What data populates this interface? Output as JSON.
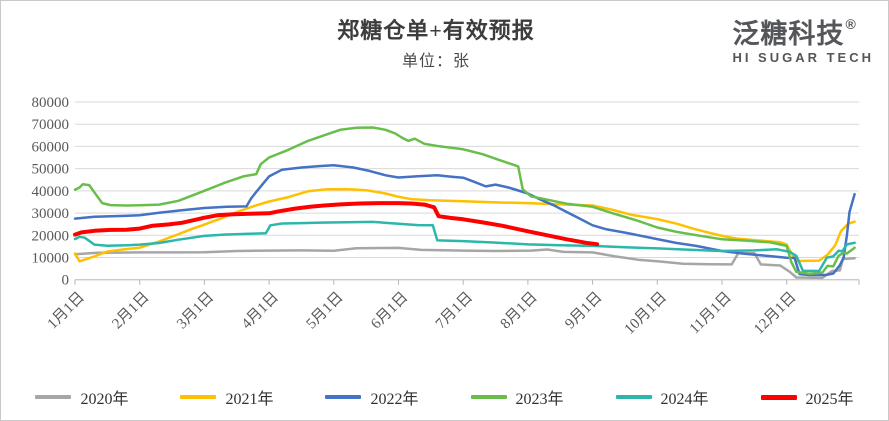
{
  "logo": {
    "name_cn": "泛糖科技",
    "registered_mark": "®",
    "name_en": "HI SUGAR TECH"
  },
  "chart_data": {
    "type": "line",
    "title": "郑糖仓单+有效预报",
    "unit_label": "单位：张",
    "xlabel": "",
    "ylabel": "",
    "ylim": [
      0,
      80000
    ],
    "grid": true,
    "legend_position": "bottom",
    "y_tick_labels": [
      0,
      10000,
      20000,
      30000,
      40000,
      50000,
      60000,
      70000,
      80000
    ],
    "x_tick_labels": [
      "1月1日",
      "2月1日",
      "3月1日",
      "4月1日",
      "5月1日",
      "6月1日",
      "7月1日",
      "8月1日",
      "9月1日",
      "10月1日",
      "11月1日",
      "12月1日"
    ],
    "x_unit": "month_of_year (1.0 = Jan 1, 13.0 = Dec 31)",
    "series": [
      {
        "name": "2020年",
        "color": "#a6a6a6",
        "line_width": 2.5,
        "points": [
          [
            1.0,
            11500
          ],
          [
            1.35,
            12100
          ],
          [
            1.7,
            12200
          ],
          [
            2.0,
            12300
          ],
          [
            2.6,
            12300
          ],
          [
            3.0,
            12400
          ],
          [
            3.5,
            12900
          ],
          [
            4.0,
            13100
          ],
          [
            4.5,
            13200
          ],
          [
            5.0,
            13000
          ],
          [
            5.35,
            14200
          ],
          [
            6.0,
            14300
          ],
          [
            6.35,
            13400
          ],
          [
            7.0,
            13100
          ],
          [
            7.5,
            12900
          ],
          [
            8.05,
            13100
          ],
          [
            8.3,
            13600
          ],
          [
            8.55,
            12500
          ],
          [
            9.0,
            12300
          ],
          [
            9.35,
            10500
          ],
          [
            9.7,
            9000
          ],
          [
            10.0,
            8300
          ],
          [
            10.4,
            7200
          ],
          [
            10.8,
            7000
          ],
          [
            11.15,
            6900
          ],
          [
            11.25,
            11900
          ],
          [
            11.5,
            11900
          ],
          [
            11.6,
            6900
          ],
          [
            11.9,
            6400
          ],
          [
            12.05,
            3500
          ],
          [
            12.15,
            1000
          ],
          [
            12.55,
            800
          ],
          [
            12.7,
            3900
          ],
          [
            12.82,
            4200
          ],
          [
            12.87,
            9300
          ],
          [
            13.05,
            9700
          ]
        ]
      },
      {
        "name": "2021年",
        "color": "#ffc000",
        "line_width": 2.5,
        "points": [
          [
            1.0,
            11800
          ],
          [
            1.07,
            8300
          ],
          [
            1.3,
            10500
          ],
          [
            1.5,
            12700
          ],
          [
            1.8,
            13800
          ],
          [
            2.0,
            14400
          ],
          [
            2.3,
            17200
          ],
          [
            2.6,
            20500
          ],
          [
            2.8,
            22800
          ],
          [
            3.0,
            24800
          ],
          [
            3.25,
            27500
          ],
          [
            3.5,
            30500
          ],
          [
            3.75,
            33000
          ],
          [
            4.0,
            35200
          ],
          [
            4.3,
            37200
          ],
          [
            4.6,
            39800
          ],
          [
            4.9,
            40700
          ],
          [
            5.2,
            40800
          ],
          [
            5.5,
            40300
          ],
          [
            5.8,
            38800
          ],
          [
            6.0,
            37300
          ],
          [
            6.2,
            36300
          ],
          [
            6.5,
            35800
          ],
          [
            7.0,
            35300
          ],
          [
            7.5,
            34800
          ],
          [
            8.0,
            34500
          ],
          [
            8.5,
            33900
          ],
          [
            9.0,
            33400
          ],
          [
            9.3,
            31500
          ],
          [
            9.6,
            29200
          ],
          [
            10.0,
            27300
          ],
          [
            10.3,
            25200
          ],
          [
            10.55,
            23000
          ],
          [
            10.75,
            21500
          ],
          [
            11.0,
            19700
          ],
          [
            11.25,
            18400
          ],
          [
            11.6,
            17600
          ],
          [
            11.9,
            16900
          ],
          [
            12.0,
            15800
          ],
          [
            12.08,
            11500
          ],
          [
            12.17,
            8400
          ],
          [
            12.5,
            8600
          ],
          [
            12.63,
            11200
          ],
          [
            12.75,
            15500
          ],
          [
            12.84,
            21900
          ],
          [
            12.95,
            25200
          ],
          [
            13.05,
            26100
          ]
        ]
      },
      {
        "name": "2022年",
        "color": "#4472c4",
        "line_width": 2.5,
        "points": [
          [
            1.0,
            27500
          ],
          [
            1.3,
            28300
          ],
          [
            1.7,
            28700
          ],
          [
            2.0,
            29000
          ],
          [
            2.3,
            30100
          ],
          [
            2.65,
            31300
          ],
          [
            3.0,
            32300
          ],
          [
            3.35,
            32800
          ],
          [
            3.65,
            33000
          ],
          [
            3.72,
            36500
          ],
          [
            3.8,
            39500
          ],
          [
            3.9,
            43000
          ],
          [
            4.0,
            46500
          ],
          [
            4.2,
            49500
          ],
          [
            4.5,
            50500
          ],
          [
            4.8,
            51200
          ],
          [
            5.0,
            51500
          ],
          [
            5.3,
            50500
          ],
          [
            5.55,
            49000
          ],
          [
            5.8,
            47000
          ],
          [
            6.0,
            46000
          ],
          [
            6.3,
            46600
          ],
          [
            6.6,
            47000
          ],
          [
            6.8,
            46400
          ],
          [
            7.0,
            45900
          ],
          [
            7.15,
            44300
          ],
          [
            7.35,
            42000
          ],
          [
            7.5,
            42800
          ],
          [
            7.7,
            41500
          ],
          [
            8.0,
            38800
          ],
          [
            8.2,
            36000
          ],
          [
            8.4,
            33500
          ],
          [
            8.6,
            30500
          ],
          [
            8.8,
            27500
          ],
          [
            9.0,
            24500
          ],
          [
            9.2,
            22800
          ],
          [
            9.5,
            21200
          ],
          [
            10.0,
            18300
          ],
          [
            10.3,
            16500
          ],
          [
            10.6,
            15200
          ],
          [
            11.0,
            12900
          ],
          [
            11.35,
            11700
          ],
          [
            11.7,
            10700
          ],
          [
            12.0,
            9900
          ],
          [
            12.12,
            9800
          ],
          [
            12.2,
            2500
          ],
          [
            12.35,
            2100
          ],
          [
            12.6,
            2100
          ],
          [
            12.72,
            2800
          ],
          [
            12.82,
            6500
          ],
          [
            12.88,
            9900
          ],
          [
            12.93,
            20000
          ],
          [
            12.97,
            30500
          ],
          [
            13.05,
            38500
          ]
        ]
      },
      {
        "name": "2023年",
        "color": "#69be4b",
        "line_width": 2.5,
        "points": [
          [
            1.0,
            40500
          ],
          [
            1.07,
            41500
          ],
          [
            1.12,
            43000
          ],
          [
            1.22,
            42600
          ],
          [
            1.32,
            38500
          ],
          [
            1.42,
            34500
          ],
          [
            1.55,
            33600
          ],
          [
            1.8,
            33400
          ],
          [
            2.0,
            33500
          ],
          [
            2.3,
            33800
          ],
          [
            2.6,
            35500
          ],
          [
            3.0,
            40000
          ],
          [
            3.3,
            43500
          ],
          [
            3.6,
            46500
          ],
          [
            3.8,
            47500
          ],
          [
            3.87,
            52000
          ],
          [
            4.0,
            55000
          ],
          [
            4.3,
            58500
          ],
          [
            4.6,
            62500
          ],
          [
            4.85,
            65000
          ],
          [
            5.1,
            67500
          ],
          [
            5.35,
            68400
          ],
          [
            5.6,
            68500
          ],
          [
            5.8,
            67500
          ],
          [
            5.95,
            65800
          ],
          [
            6.05,
            64000
          ],
          [
            6.15,
            62500
          ],
          [
            6.25,
            63500
          ],
          [
            6.4,
            61200
          ],
          [
            6.6,
            60200
          ],
          [
            7.0,
            58700
          ],
          [
            7.3,
            56500
          ],
          [
            7.6,
            53500
          ],
          [
            7.85,
            51000
          ],
          [
            7.92,
            40700
          ],
          [
            8.05,
            37500
          ],
          [
            8.3,
            36000
          ],
          [
            8.6,
            34200
          ],
          [
            9.0,
            32800
          ],
          [
            9.3,
            30000
          ],
          [
            9.7,
            26500
          ],
          [
            10.0,
            23500
          ],
          [
            10.3,
            21500
          ],
          [
            10.65,
            19800
          ],
          [
            11.0,
            18200
          ],
          [
            11.4,
            17500
          ],
          [
            11.75,
            16800
          ],
          [
            12.0,
            15200
          ],
          [
            12.07,
            8000
          ],
          [
            12.15,
            3500
          ],
          [
            12.35,
            2700
          ],
          [
            12.55,
            3200
          ],
          [
            12.63,
            6200
          ],
          [
            12.72,
            6000
          ],
          [
            12.8,
            10700
          ],
          [
            12.88,
            12200
          ],
          [
            12.93,
            11800
          ],
          [
            13.05,
            14400
          ]
        ]
      },
      {
        "name": "2024年",
        "color": "#2cb7aa",
        "line_width": 2.5,
        "points": [
          [
            1.0,
            18300
          ],
          [
            1.07,
            19300
          ],
          [
            1.15,
            18900
          ],
          [
            1.3,
            15800
          ],
          [
            1.5,
            15300
          ],
          [
            1.8,
            15500
          ],
          [
            2.0,
            15800
          ],
          [
            2.3,
            16500
          ],
          [
            2.6,
            18000
          ],
          [
            3.0,
            19700
          ],
          [
            3.3,
            20300
          ],
          [
            3.7,
            20700
          ],
          [
            3.95,
            20900
          ],
          [
            4.02,
            24500
          ],
          [
            4.2,
            25300
          ],
          [
            4.5,
            25500
          ],
          [
            4.8,
            25700
          ],
          [
            5.2,
            25900
          ],
          [
            5.6,
            26000
          ],
          [
            6.0,
            25200
          ],
          [
            6.3,
            24600
          ],
          [
            6.53,
            24500
          ],
          [
            6.6,
            17700
          ],
          [
            7.0,
            17400
          ],
          [
            7.5,
            16700
          ],
          [
            8.0,
            15900
          ],
          [
            8.5,
            15500
          ],
          [
            9.0,
            15200
          ],
          [
            9.5,
            14600
          ],
          [
            10.0,
            14100
          ],
          [
            10.5,
            13500
          ],
          [
            11.0,
            12900
          ],
          [
            11.5,
            13200
          ],
          [
            11.85,
            13700
          ],
          [
            12.05,
            12500
          ],
          [
            12.15,
            10700
          ],
          [
            12.25,
            4000
          ],
          [
            12.5,
            3900
          ],
          [
            12.62,
            9900
          ],
          [
            12.72,
            10500
          ],
          [
            12.8,
            13000
          ],
          [
            12.86,
            12800
          ],
          [
            12.93,
            15900
          ],
          [
            13.05,
            16600
          ]
        ]
      },
      {
        "name": "2025年",
        "color": "#ff0000",
        "line_width": 4,
        "points": [
          [
            1.0,
            20300
          ],
          [
            1.1,
            21300
          ],
          [
            1.3,
            22000
          ],
          [
            1.55,
            22400
          ],
          [
            1.8,
            22500
          ],
          [
            2.0,
            23000
          ],
          [
            2.2,
            24300
          ],
          [
            2.45,
            24900
          ],
          [
            2.65,
            25600
          ],
          [
            2.85,
            26900
          ],
          [
            3.0,
            27900
          ],
          [
            3.2,
            29000
          ],
          [
            3.45,
            29500
          ],
          [
            3.7,
            29700
          ],
          [
            4.0,
            29900
          ],
          [
            4.15,
            30800
          ],
          [
            4.4,
            32000
          ],
          [
            4.65,
            32900
          ],
          [
            4.85,
            33400
          ],
          [
            5.1,
            33900
          ],
          [
            5.4,
            34300
          ],
          [
            5.7,
            34500
          ],
          [
            6.0,
            34500
          ],
          [
            6.2,
            34300
          ],
          [
            6.4,
            33800
          ],
          [
            6.55,
            32600
          ],
          [
            6.62,
            28600
          ],
          [
            6.8,
            27800
          ],
          [
            7.0,
            27200
          ],
          [
            7.3,
            25800
          ],
          [
            7.6,
            24300
          ],
          [
            8.0,
            21800
          ],
          [
            8.3,
            20000
          ],
          [
            8.6,
            18200
          ],
          [
            8.9,
            16600
          ],
          [
            9.07,
            16000
          ]
        ]
      }
    ]
  }
}
